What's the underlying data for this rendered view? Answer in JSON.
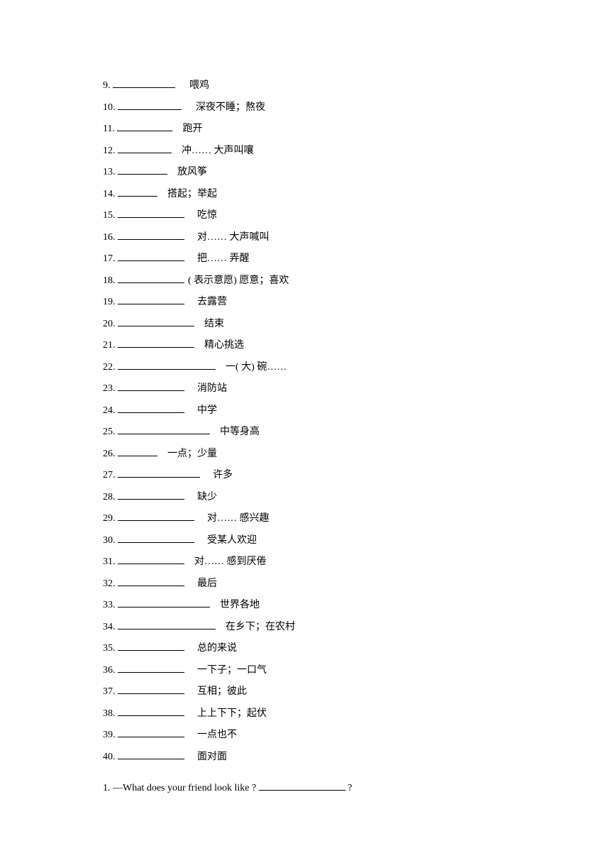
{
  "vocab_items": [
    {
      "num": "9.",
      "blank_width": 88,
      "text": "喂鸡",
      "gap": 20
    },
    {
      "num": "10.",
      "blank_width": 90,
      "text": "深夜不睡；熬夜",
      "gap": 20
    },
    {
      "num": "11.",
      "blank_width": 78,
      "text": "跑开",
      "gap": 14
    },
    {
      "num": "12.",
      "blank_width": 76,
      "text": "冲…… 大声叫嚷",
      "gap": 14
    },
    {
      "num": "13.",
      "blank_width": 70,
      "text": "放风筝",
      "gap": 14
    },
    {
      "num": "14.",
      "blank_width": 56,
      "text": "搭起；举起",
      "gap": 14
    },
    {
      "num": "15.",
      "blank_width": 94,
      "text": "吃惊",
      "gap": 18
    },
    {
      "num": "16.",
      "blank_width": 94,
      "text": "对…… 大声喊叫",
      "gap": 18
    },
    {
      "num": "17.",
      "blank_width": 94,
      "text": "把…… 弄醒",
      "gap": 18
    },
    {
      "num": "18.",
      "blank_width": 94,
      "text": "( 表示意愿)  愿意；喜欢",
      "gap": 5
    },
    {
      "num": "19.",
      "blank_width": 94,
      "text": "去露营",
      "gap": 18
    },
    {
      "num": "20.",
      "blank_width": 108,
      "text": "结束",
      "gap": 14
    },
    {
      "num": "21.",
      "blank_width": 108,
      "text": "精心挑选",
      "gap": 14
    },
    {
      "num": "22.",
      "blank_width": 138,
      "text": "一( 大)  碗……",
      "gap": 14
    },
    {
      "num": "23.",
      "blank_width": 94,
      "text": "消防站",
      "gap": 18
    },
    {
      "num": "24.",
      "blank_width": 94,
      "text": "中学",
      "gap": 18
    },
    {
      "num": "25.",
      "blank_width": 130,
      "text": "中等身高",
      "gap": 14
    },
    {
      "num": "26.",
      "blank_width": 56,
      "text": "一点；少量",
      "gap": 14
    },
    {
      "num": "27.",
      "blank_width": 116,
      "text": "许多",
      "gap": 18
    },
    {
      "num": "28.",
      "blank_width": 94,
      "text": "缺少",
      "gap": 18
    },
    {
      "num": "29.",
      "blank_width": 108,
      "text": "对…… 感兴趣",
      "gap": 18
    },
    {
      "num": "30.",
      "blank_width": 108,
      "text": "受某人欢迎",
      "gap": 18
    },
    {
      "num": "31.",
      "blank_width": 94,
      "text": "对…… 感到厌倦",
      "gap": 14
    },
    {
      "num": "32.",
      "blank_width": 94,
      "text": "最后",
      "gap": 18
    },
    {
      "num": "33.",
      "blank_width": 130,
      "text": "世界各地",
      "gap": 14
    },
    {
      "num": "34.",
      "blank_width": 138,
      "text": "在乡下；在农村",
      "gap": 14
    },
    {
      "num": "35.",
      "blank_width": 94,
      "text": "总的来说",
      "gap": 18
    },
    {
      "num": "36.",
      "blank_width": 94,
      "text": "一下子；一口气",
      "gap": 18
    },
    {
      "num": "37.",
      "blank_width": 94,
      "text": "互相；彼此",
      "gap": 18
    },
    {
      "num": "38.",
      "blank_width": 94,
      "text": "上上下下；起伏",
      "gap": 18
    },
    {
      "num": "39.",
      "blank_width": 94,
      "text": "一点也不",
      "gap": 18
    },
    {
      "num": "40.",
      "blank_width": 94,
      "text": "面对面",
      "gap": 18
    }
  ],
  "question": {
    "num": "1.",
    "text_before": "—What does your friend look like  ?",
    "blank_width": 122,
    "text_after": "?"
  }
}
